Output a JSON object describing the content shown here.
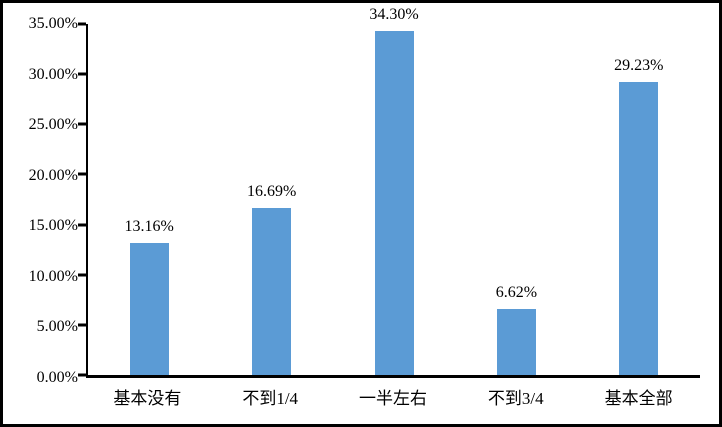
{
  "chart_data": {
    "type": "bar",
    "title": "",
    "xlabel": "",
    "ylabel": "",
    "categories": [
      "基本没有",
      "不到1/4",
      "一半左右",
      "不到3/4",
      "基本全部"
    ],
    "values": [
      13.16,
      16.69,
      34.3,
      6.62,
      29.23
    ],
    "data_labels": [
      "13.16%",
      "16.69%",
      "34.30%",
      "6.62%",
      "29.23%"
    ],
    "ylim": [
      0,
      35
    ],
    "y_ticks": [
      0,
      5,
      10,
      15,
      20,
      25,
      30,
      35
    ],
    "y_tick_labels": [
      "0.00%",
      "5.00%",
      "10.00%",
      "15.00%",
      "20.00%",
      "25.00%",
      "30.00%",
      "35.00%"
    ],
    "grid": false,
    "legend": false,
    "bar_color": "#5B9BD5",
    "axis_color": "#000000",
    "background_color": "#FFFFFF",
    "border_color": "#000000"
  }
}
